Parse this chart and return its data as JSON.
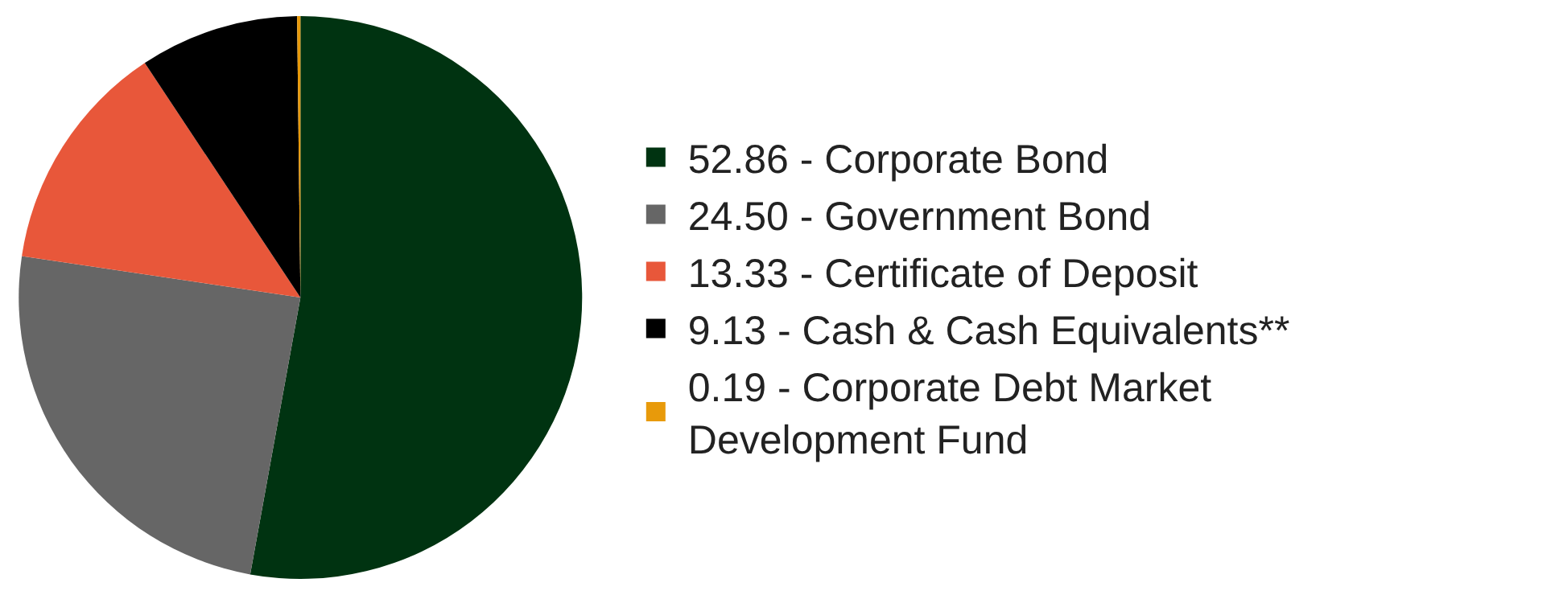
{
  "chart_data": {
    "type": "pie",
    "categories": [
      "52.86 - Corporate Bond",
      "24.50 - Government Bond",
      "13.33 - Certificate of Deposit",
      "9.13 - Cash & Cash Equivalents**",
      "0.19 - Corporate Debt Market Development Fund"
    ],
    "values": [
      52.86,
      24.5,
      13.33,
      9.13,
      0.19
    ],
    "colors": [
      "#003311",
      "#666666",
      "#e8573a",
      "#000000",
      "#e89a0a"
    ],
    "legend": "right"
  }
}
